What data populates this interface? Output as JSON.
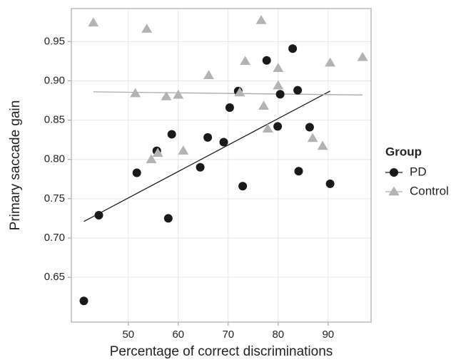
{
  "chart_data": {
    "type": "scatter",
    "x_label": "Percentage of correct discriminations",
    "y_label": "Primary saccade gain",
    "legend_title": "Group",
    "legend": "right",
    "grid": true,
    "xlim": [
      38.6,
      98.6
    ],
    "ylim": [
      0.593,
      0.992
    ],
    "xticks": [
      50,
      60,
      70,
      80,
      90
    ],
    "yticks": [
      0.65,
      {
        "value": 0.7,
        "label": "0.70"
      },
      0.75,
      {
        "value": 0.8,
        "label": "0.80"
      },
      0.85,
      {
        "value": 0.9,
        "label": "0.90"
      },
      0.95
    ],
    "series": [
      {
        "name": "PD",
        "color": "#1a1a1a",
        "marker": "circle",
        "x": [
          41.1,
          44.1,
          51.7,
          55.7,
          58.0,
          58.7,
          64.4,
          65.9,
          69.1,
          70.3,
          72.0,
          72.9,
          77.7,
          79.9,
          80.4,
          82.9,
          83.9,
          84.1,
          86.3,
          90.4
        ],
        "values": [
          0.62,
          0.729,
          0.783,
          0.811,
          0.725,
          0.832,
          0.79,
          0.828,
          0.822,
          0.866,
          0.887,
          0.766,
          0.926,
          0.842,
          0.883,
          0.941,
          0.888,
          0.785,
          0.841,
          0.769
        ],
        "fit": {
          "x": [
            41.1,
            90.4
          ],
          "values": [
            0.721,
            0.887
          ]
        }
      },
      {
        "name": "Control",
        "color": "#b3b3b3",
        "marker": "triangle",
        "x": [
          43.0,
          53.7,
          51.4,
          57.6,
          60.0,
          54.6,
          55.9,
          61.0,
          66.1,
          72.3,
          73.4,
          76.6,
          77.1,
          77.9,
          80.0,
          80.0,
          86.9,
          88.9,
          90.4,
          96.9
        ],
        "values": [
          0.974,
          0.966,
          0.884,
          0.88,
          0.882,
          0.8,
          0.808,
          0.811,
          0.907,
          0.885,
          0.925,
          0.977,
          0.868,
          0.839,
          0.916,
          0.894,
          0.827,
          0.817,
          0.923,
          0.93
        ],
        "fit": {
          "x": [
            43.0,
            96.9
          ],
          "values": [
            0.886,
            0.882
          ]
        }
      }
    ]
  }
}
